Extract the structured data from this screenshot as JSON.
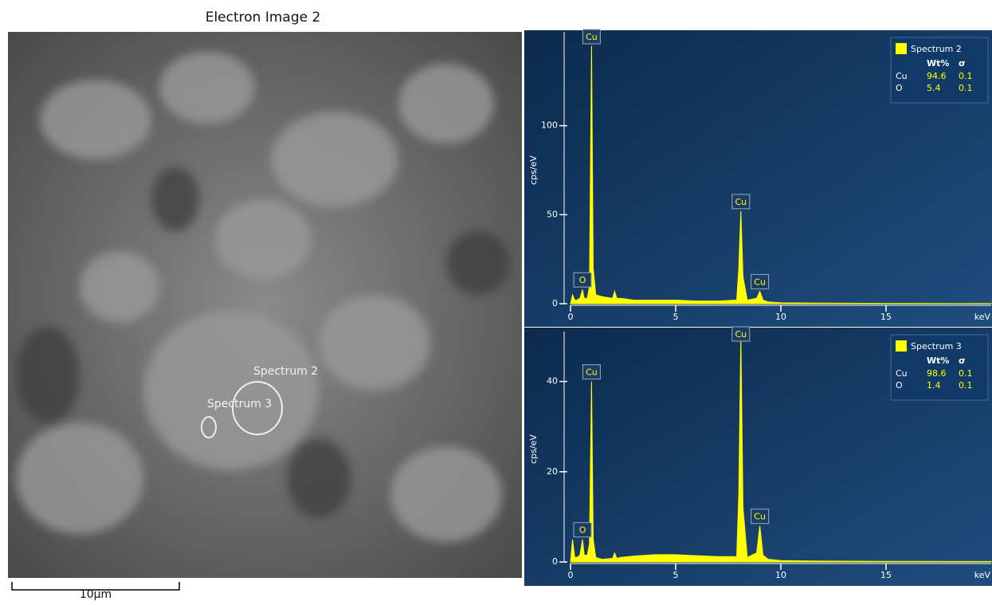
{
  "image": {
    "title": "Electron Image 2",
    "labels": [
      "Spectrum 2",
      "Spectrum 3"
    ],
    "scale_bar": "10µm"
  },
  "chart_data": [
    {
      "type": "area",
      "y_label": "cps/eV",
      "x_label": "keV",
      "color": "#ffff00",
      "xlim": [
        0,
        20
      ],
      "ylim": [
        0,
        150
      ],
      "xticks": [
        0,
        5,
        10,
        15
      ],
      "yticks": [
        0,
        50,
        100
      ],
      "x": [
        0,
        0.1,
        0.2,
        0.3,
        0.45,
        0.57,
        0.65,
        0.8,
        0.9,
        1.0,
        1.08,
        1.2,
        1.5,
        2.0,
        2.1,
        2.2,
        2.4,
        3,
        4,
        5,
        6,
        7,
        7.9,
        8.0,
        8.1,
        8.2,
        8.4,
        8.85,
        9.0,
        9.15,
        9.4,
        10,
        12,
        15,
        18,
        20
      ],
      "values": [
        0,
        5,
        2,
        2,
        3,
        8,
        3,
        3,
        10,
        145,
        20,
        5,
        4,
        3,
        7,
        3,
        3,
        2,
        2,
        2,
        1.5,
        1.5,
        2,
        20,
        52,
        15,
        2,
        3,
        7,
        2,
        1,
        0.5,
        0.3,
        0.2,
        0.1,
        0.1
      ],
      "peaks": [
        {
          "label": "O",
          "x": 0.57
        },
        {
          "label": "Cu",
          "x": 1.0
        },
        {
          "label": "Cu",
          "x": 8.1
        },
        {
          "label": "Cu",
          "x": 9.0
        }
      ],
      "legend": {
        "position": "upper right",
        "name": "Spectrum 2",
        "header": [
          "Wt%",
          "σ"
        ],
        "rows": [
          [
            "Cu",
            "94.6",
            "0.1"
          ],
          [
            "O",
            "5.4",
            "0.1"
          ]
        ]
      }
    },
    {
      "type": "area",
      "y_label": "cps/eV",
      "x_label": "keV",
      "color": "#ffff00",
      "xlim": [
        0,
        20
      ],
      "ylim": [
        0,
        50
      ],
      "xticks": [
        0,
        5,
        10,
        15
      ],
      "yticks": [
        0,
        20,
        40
      ],
      "x": [
        0,
        0.1,
        0.2,
        0.3,
        0.45,
        0.57,
        0.65,
        0.8,
        0.9,
        1.0,
        1.08,
        1.2,
        1.5,
        2.0,
        2.1,
        2.2,
        2.4,
        3,
        4,
        5,
        6,
        7,
        7.9,
        8.0,
        8.1,
        8.2,
        8.4,
        8.85,
        9.0,
        9.15,
        9.4,
        10,
        12,
        15,
        18,
        20
      ],
      "values": [
        0,
        5,
        1,
        1,
        1.5,
        5,
        1.5,
        1.5,
        4,
        40,
        5,
        1,
        0.6,
        0.8,
        2,
        0.8,
        1,
        1.3,
        1.6,
        1.6,
        1.4,
        1.2,
        1.2,
        15,
        50,
        12,
        1,
        2,
        8,
        1.5,
        0.6,
        0.3,
        0.2,
        0.15,
        0.1,
        0.1
      ],
      "peaks": [
        {
          "label": "O",
          "x": 0.57
        },
        {
          "label": "Cu",
          "x": 1.0
        },
        {
          "label": "Cu",
          "x": 8.1
        },
        {
          "label": "Cu",
          "x": 9.0
        }
      ],
      "legend": {
        "position": "upper right",
        "name": "Spectrum 3",
        "header": [
          "Wt%",
          "σ"
        ],
        "rows": [
          [
            "Cu",
            "98.6",
            "0.1"
          ],
          [
            "O",
            "1.4",
            "0.1"
          ]
        ]
      }
    }
  ]
}
